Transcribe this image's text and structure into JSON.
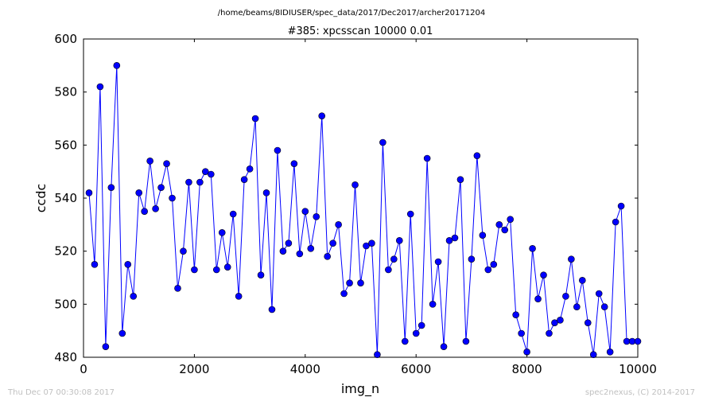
{
  "chart_data": {
    "type": "line",
    "supertitle": "/home/beams/8IDIUSER/spec_data/2017/Dec2017/archer20171204",
    "title": "#385: xpcsscan 10000 0.01",
    "xlabel": "img_n",
    "ylabel": "ccdc",
    "xlim": [
      0,
      10000
    ],
    "ylim": [
      480,
      600
    ],
    "xticks": [
      0,
      2000,
      4000,
      6000,
      8000,
      10000
    ],
    "yticks": [
      480,
      500,
      520,
      540,
      560,
      580,
      600
    ],
    "grid": false,
    "line_color": "#0000ff",
    "marker_color": "#0000ff",
    "x": [
      100,
      200,
      300,
      400,
      500,
      600,
      700,
      800,
      900,
      1000,
      1100,
      1200,
      1300,
      1400,
      1500,
      1600,
      1700,
      1800,
      1900,
      2000,
      2100,
      2200,
      2300,
      2400,
      2500,
      2600,
      2700,
      2800,
      2900,
      3000,
      3100,
      3200,
      3300,
      3400,
      3500,
      3600,
      3700,
      3800,
      3900,
      4000,
      4100,
      4200,
      4300,
      4400,
      4500,
      4600,
      4700,
      4800,
      4900,
      5000,
      5100,
      5200,
      5300,
      5400,
      5500,
      5600,
      5700,
      5800,
      5900,
      6000,
      6100,
      6200,
      6300,
      6400,
      6500,
      6600,
      6700,
      6800,
      6900,
      7000,
      7100,
      7200,
      7300,
      7400,
      7500,
      7600,
      7700,
      7800,
      7900,
      8000,
      8100,
      8200,
      8300,
      8400,
      8500,
      8600,
      8700,
      8800,
      8900,
      9000,
      9100,
      9200,
      9300,
      9400,
      9500,
      9600,
      9700,
      9800,
      9900,
      10000
    ],
    "y": [
      542,
      515,
      582,
      484,
      544,
      590,
      489,
      515,
      503,
      542,
      535,
      554,
      536,
      544,
      553,
      540,
      506,
      520,
      546,
      513,
      546,
      550,
      549,
      513,
      527,
      514,
      534,
      503,
      547,
      551,
      570,
      511,
      542,
      498,
      558,
      520,
      523,
      553,
      519,
      535,
      521,
      533,
      571,
      518,
      523,
      530,
      504,
      508,
      545,
      508,
      522,
      523,
      481,
      561,
      513,
      517,
      524,
      486,
      534,
      489,
      492,
      555,
      500,
      516,
      484,
      524,
      525,
      547,
      486,
      517,
      556,
      526,
      513,
      515,
      530,
      528,
      532,
      496,
      489,
      482,
      521,
      502,
      511,
      489,
      493,
      494,
      503,
      517,
      499,
      509,
      493,
      481,
      504,
      499,
      482,
      531,
      537,
      486,
      486,
      486
    ]
  },
  "footer": {
    "timestamp": "Thu Dec 07 00:30:08 2017",
    "credit": "spec2nexus, (C) 2014-2017"
  }
}
